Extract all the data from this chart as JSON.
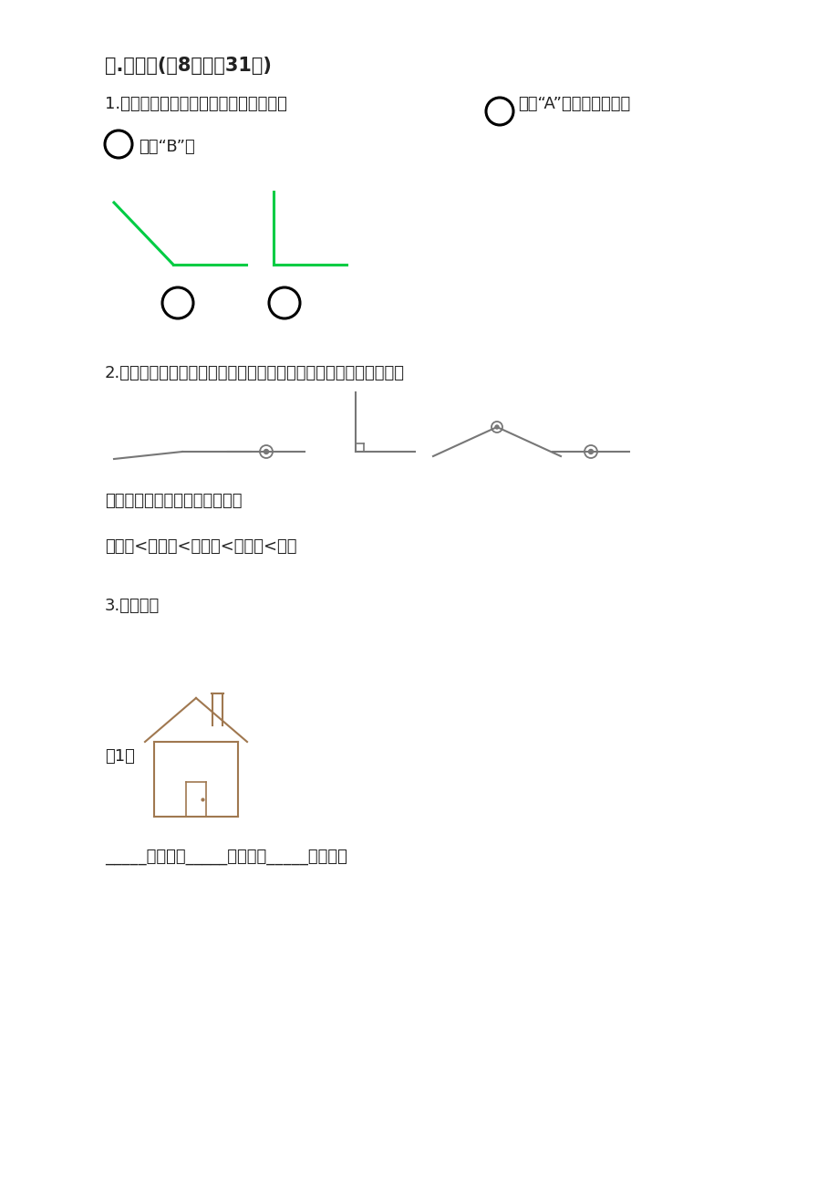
{
  "bg_color": "#ffffff",
  "title_text": "三.填空题(共8题，共31分)",
  "q1_text": "1.比较下列各组角的大小，在小角下面的",
  "q1_text2": "里画“A”，在大角下面的",
  "q1_text3": "里画“B”。",
  "q2_text": "2.分别说出下列各数的名称，并且把它们按从小到大的顺序排一排。",
  "q3_text": "3.填一填。",
  "q3_label": "（1）",
  "q3_answer": "_____个直角，_____个锐角，_____个钝角。",
  "green_color": "#00cc44",
  "gray_color": "#777777",
  "dark_color": "#222222",
  "house_color": "#a07850"
}
